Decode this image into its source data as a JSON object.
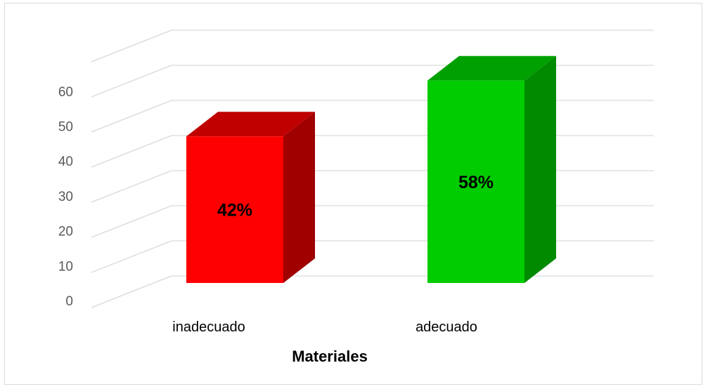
{
  "chart_data": {
    "type": "bar",
    "categories": [
      "inadecuado",
      "adecuado"
    ],
    "values": [
      42,
      58
    ],
    "data_labels": [
      "42%",
      "58%"
    ],
    "colors": {
      "front": [
        "#ff0000",
        "#00cc00"
      ],
      "top": [
        "#c00000",
        "#00a000"
      ],
      "side": [
        "#a00000",
        "#008a00"
      ]
    },
    "xlabel": "Materiales",
    "ylabel": "",
    "ylim": [
      0,
      70
    ],
    "yticks": [
      0,
      10,
      20,
      30,
      40,
      50,
      60
    ],
    "grid": true,
    "three_d": true,
    "legend": "none"
  }
}
